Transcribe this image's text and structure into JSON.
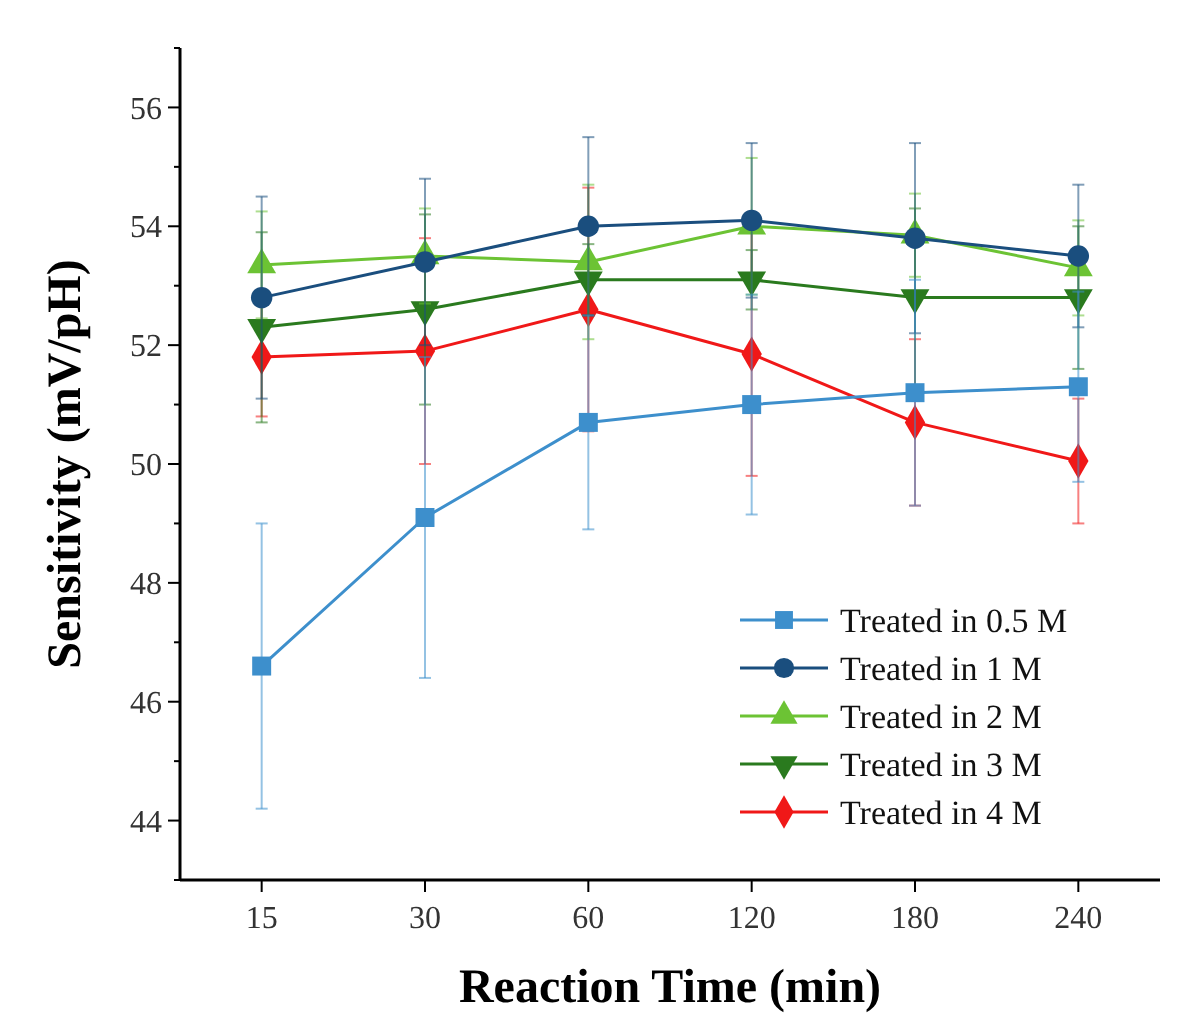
{
  "chart_data": {
    "type": "line",
    "xlabel": "Reaction Time (min)",
    "ylabel": "Sensitivity (mV/pH)",
    "categories": [
      "15",
      "30",
      "60",
      "120",
      "180",
      "240"
    ],
    "ylim": [
      43,
      57
    ],
    "yticks": [
      {
        "value": 43,
        "label": null
      },
      44,
      {
        "value": 45,
        "label": null
      },
      46,
      {
        "value": 47,
        "label": null
      },
      48,
      {
        "value": 49,
        "label": null
      },
      50,
      {
        "value": 51,
        "label": null
      },
      52,
      {
        "value": 53,
        "label": null
      },
      54,
      {
        "value": 55,
        "label": null
      },
      56,
      {
        "value": 57,
        "label": null
      }
    ],
    "legend": "bottom right",
    "grid": false,
    "line_style": "solid",
    "series": [
      {
        "name": "Treated in 0.5 M",
        "color": "#3d8fcc",
        "marker": "square",
        "values": [
          46.6,
          49.1,
          50.7,
          51.0,
          51.2,
          51.3
        ],
        "errors": [
          2.4,
          2.7,
          1.8,
          1.85,
          1.9,
          1.6
        ]
      },
      {
        "name": "Treated in 1 M",
        "color": "#1a4e7e",
        "marker": "circle",
        "values": [
          52.8,
          53.4,
          54.0,
          54.1,
          53.8,
          53.5
        ],
        "errors": [
          1.7,
          1.4,
          1.5,
          1.3,
          1.6,
          1.2
        ]
      },
      {
        "name": "Treated in 2 M",
        "color": "#6cc334",
        "marker": "triangle",
        "values": [
          53.35,
          53.5,
          53.4,
          54.0,
          53.85,
          53.3
        ],
        "errors": [
          0.9,
          0.8,
          1.3,
          1.15,
          0.7,
          0.8
        ]
      },
      {
        "name": "Treated in 3 M",
        "color": "#2a7a1e",
        "marker": "triangle-down",
        "values": [
          52.3,
          52.6,
          53.1,
          53.1,
          52.8,
          52.8
        ],
        "errors": [
          1.6,
          1.6,
          0.6,
          0.5,
          1.5,
          1.2
        ]
      },
      {
        "name": "Treated in 4 M",
        "color": "#f01818",
        "marker": "diamond",
        "values": [
          51.8,
          51.9,
          52.6,
          51.85,
          50.7,
          50.05
        ],
        "errors": [
          1.0,
          1.9,
          2.05,
          2.05,
          1.4,
          1.05
        ]
      }
    ]
  }
}
